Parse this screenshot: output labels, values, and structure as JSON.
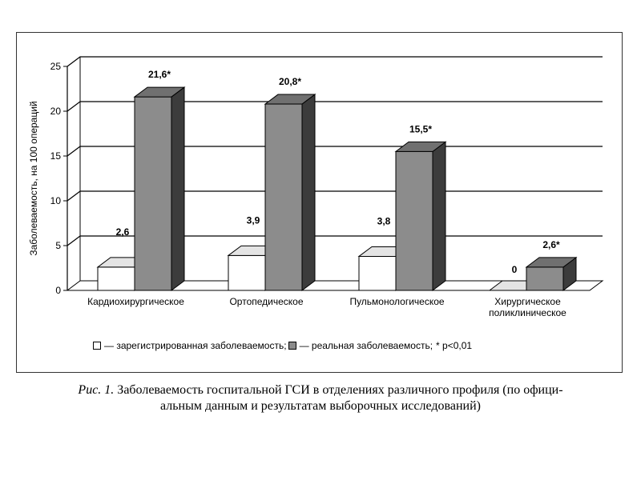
{
  "chart_data": {
    "type": "bar",
    "categories": [
      "Кардиохирургическое",
      "Ортопедическое",
      "Пульмонологическое",
      [
        "Хирургическое",
        "поликлиническое"
      ]
    ],
    "series": [
      {
        "name": "— зарегистрированная заболеваемость;",
        "values": [
          2.6,
          3.9,
          3.8,
          0
        ],
        "labels": [
          "2,6",
          "3,9",
          "3,8",
          "0"
        ],
        "color": "#ffffff"
      },
      {
        "name": "— реальная заболеваемость;",
        "values": [
          21.6,
          20.8,
          15.5,
          2.6
        ],
        "labels": [
          "21,6*",
          "20,8*",
          "15,5*",
          "2,6*"
        ],
        "color": "#8c8c8c"
      }
    ],
    "ylabel": "Заболеваемость, на 100 операций",
    "yticks": [
      "0",
      "5",
      "10",
      "15",
      "20",
      "25"
    ],
    "ylim": [
      0,
      25
    ],
    "grid": true,
    "style": "3d",
    "legend_note": "* р<0,01",
    "legend_placement": "bottom"
  },
  "caption": {
    "label": "Рис. 1.",
    "text": "Заболеваемость госпитальной ГСИ в отделениях различного профиля (по официальным данным и результатам выборочных исследований)",
    "line1": "Заболеваемость госпитальной ГСИ в отделениях различного профиля (по офици-",
    "line2": "альным данным и результатам выборочных исследований)"
  },
  "colors": {
    "registered": "#ffffff",
    "real_front": "#8c8c8c",
    "real_top": "#707070",
    "real_side": "#3c3c3c",
    "grid": "#000000"
  }
}
